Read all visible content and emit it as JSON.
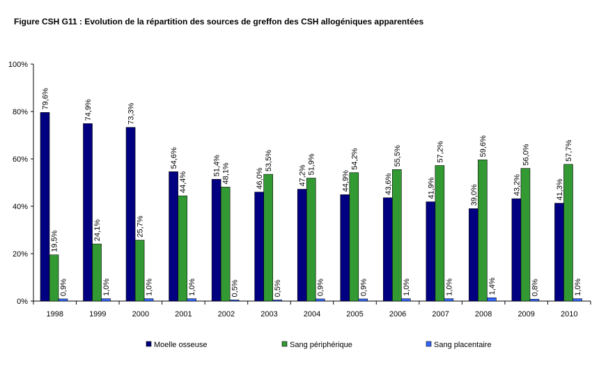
{
  "chart_data": {
    "type": "bar",
    "title": "Figure CSH G11 : Evolution de la répartition des sources de greffon des CSH allogéniques apparentées",
    "xlabel": "",
    "ylabel": "",
    "ylim": [
      0,
      100
    ],
    "y_ticks": [
      "0%",
      "20%",
      "40%",
      "60%",
      "80%",
      "100%"
    ],
    "y_tick_values": [
      0,
      20,
      40,
      60,
      80,
      100
    ],
    "grid": false,
    "legend_position": "bottom",
    "categories": [
      "1998",
      "1999",
      "2000",
      "2001",
      "2002",
      "2003",
      "2004",
      "2005",
      "2006",
      "2007",
      "2008",
      "2009",
      "2010"
    ],
    "series": [
      {
        "name": "Moelle osseuse",
        "color": "#000080",
        "values": [
          79.6,
          74.9,
          73.3,
          54.6,
          51.4,
          46.0,
          47.2,
          44.9,
          43.6,
          41.9,
          39.0,
          43.2,
          41.3
        ],
        "labels": [
          "79,6%",
          "74,9%",
          "73,3%",
          "54,6%",
          "51,4%",
          "46,0%",
          "47,2%",
          "44,9%",
          "43,6%",
          "41,9%",
          "39,0%",
          "43,2%",
          "41,3%"
        ]
      },
      {
        "name": "Sang périphérique",
        "color": "#339933",
        "values": [
          19.5,
          24.1,
          25.7,
          44.4,
          48.1,
          53.5,
          51.9,
          54.2,
          55.5,
          57.2,
          59.6,
          56.0,
          57.7
        ],
        "labels": [
          "19,5%",
          "24,1%",
          "25,7%",
          "44,4%",
          "48,1%",
          "53,5%",
          "51,9%",
          "54,2%",
          "55,5%",
          "57,2%",
          "59,6%",
          "56,0%",
          "57,7%"
        ]
      },
      {
        "name": "Sang placentaire",
        "color": "#3366FF",
        "values": [
          0.9,
          1.0,
          1.0,
          1.0,
          0.5,
          0.5,
          0.9,
          0.9,
          1.0,
          1.0,
          1.4,
          0.8,
          1.0
        ],
        "labels": [
          "0,9%",
          "1,0%",
          "1,0%",
          "1,0%",
          "0,5%",
          "0,5%",
          "0,9%",
          "0,9%",
          "1,0%",
          "1,0%",
          "1,4%",
          "0,8%",
          "1,0%"
        ]
      }
    ]
  }
}
